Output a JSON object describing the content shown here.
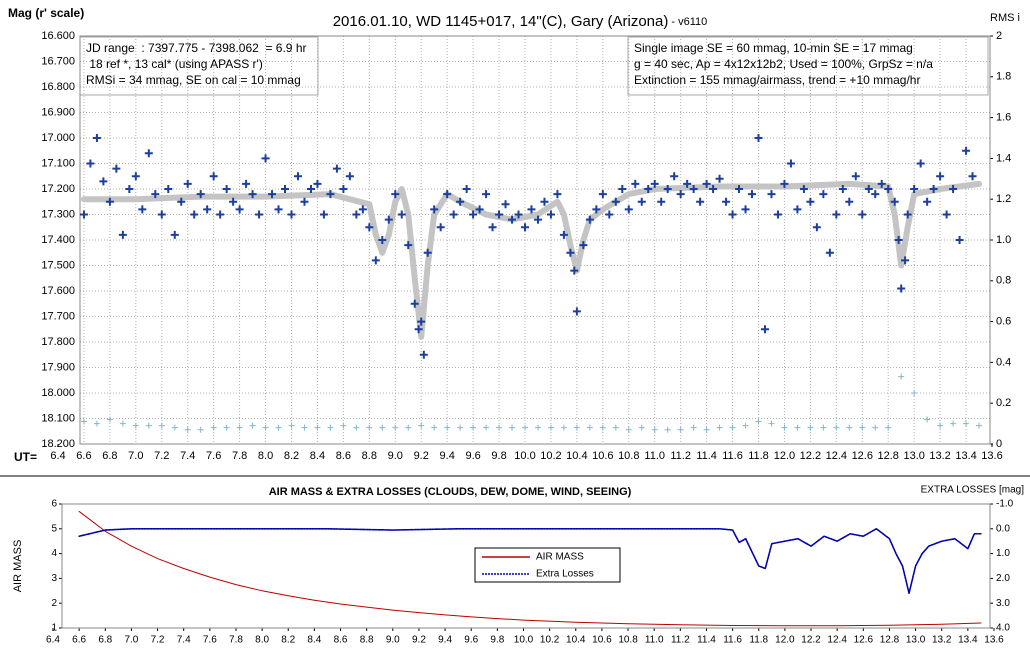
{
  "chart_data": [
    {
      "type": "scatter",
      "title": "2016.01.10, WD 1145+017, 14\"(C), Gary (Arizona)",
      "subtitle": " - v6110",
      "ylabel": "Mag (r' scale)",
      "y2label": "RMS i",
      "xlabel": "UT=",
      "notes_left": [
        "JD range  : 7397.775 - 7398.062  = 6.9 hr",
        " 18 ref *, 13 cal* (using APASS r')",
        "RMSi = 34 mmag, SE on cal = 10 mmag"
      ],
      "notes_right": [
        "Single image SE = 60 mmag, 10-min SE = 17 mmag",
        "g = 40 sec, Ap = 4x12x12b2, Used = 100%, GrpSz = n/a",
        "Extinction = 155 mmag/airmass, trend = +10 mmag/hr"
      ],
      "grid": true,
      "xlim": [
        6.4,
        13.6
      ],
      "xticks": [
        6.4,
        6.6,
        6.8,
        {
          "value": 7,
          "label": "7.0"
        },
        7.2,
        7.4,
        7.6,
        7.8,
        {
          "value": 8,
          "label": "8.0"
        },
        8.2,
        8.4,
        8.6,
        8.8,
        {
          "value": 9,
          "label": "9.0"
        },
        9.2,
        9.4,
        9.6,
        9.8,
        {
          "value": 10,
          "label": "10.0"
        },
        10.2,
        10.4,
        10.6,
        10.8,
        {
          "value": 11,
          "label": "11.0"
        },
        11.2,
        11.4,
        11.6,
        11.8,
        {
          "value": 12,
          "label": "12.0"
        },
        12.2,
        12.4,
        12.6,
        12.8,
        {
          "value": 13,
          "label": "13.0"
        },
        13.2,
        13.4,
        13.6
      ],
      "ylim": [
        18.2,
        16.6
      ],
      "yticks": [
        {
          "value": 16.6,
          "label": "16.600"
        },
        {
          "value": 16.7,
          "label": "16.700"
        },
        {
          "value": 16.8,
          "label": "16.800"
        },
        {
          "value": 16.9,
          "label": "16.900"
        },
        {
          "value": 17.0,
          "label": "17.000"
        },
        {
          "value": 17.1,
          "label": "17.100"
        },
        {
          "value": 17.2,
          "label": "17.200"
        },
        {
          "value": 17.3,
          "label": "17.300"
        },
        {
          "value": 17.4,
          "label": "17.400"
        },
        {
          "value": 17.5,
          "label": "17.500"
        },
        {
          "value": 17.6,
          "label": "17.600"
        },
        {
          "value": 17.7,
          "label": "17.700"
        },
        {
          "value": 17.8,
          "label": "17.800"
        },
        {
          "value": 17.9,
          "label": "17.900"
        },
        {
          "value": 18.0,
          "label": "18.000"
        },
        {
          "value": 18.1,
          "label": "18.100"
        },
        {
          "value": 18.2,
          "label": "18.200"
        }
      ],
      "y2lim": [
        0,
        2
      ],
      "y2ticks": [
        0,
        0.2,
        0.4,
        0.6,
        0.8,
        {
          "value": 1,
          "label": "1.0"
        },
        1.2,
        1.4,
        1.6,
        1.8,
        2
      ],
      "series": [
        {
          "type": "line",
          "color": "#c4c4c4",
          "x": [
            6.6,
            7.0,
            7.5,
            8.0,
            8.5,
            8.8,
            8.85,
            8.9,
            8.95,
            9.0,
            9.05,
            9.1,
            9.15,
            9.2,
            9.25,
            9.3,
            9.4,
            9.5,
            9.7,
            9.9,
            10.1,
            10.25,
            10.3,
            10.35,
            10.4,
            10.45,
            10.5,
            10.6,
            10.8,
            11.0,
            11.5,
            12.0,
            12.5,
            12.8,
            12.85,
            12.9,
            12.95,
            13.0,
            13.2,
            13.5
          ],
          "values": [
            17.24,
            17.24,
            17.23,
            17.23,
            17.22,
            17.26,
            17.38,
            17.45,
            17.38,
            17.25,
            17.2,
            17.3,
            17.55,
            17.78,
            17.5,
            17.3,
            17.22,
            17.25,
            17.3,
            17.32,
            17.3,
            17.25,
            17.3,
            17.42,
            17.52,
            17.4,
            17.32,
            17.28,
            17.22,
            17.2,
            17.19,
            17.19,
            17.18,
            17.19,
            17.3,
            17.5,
            17.35,
            17.22,
            17.2,
            17.18
          ]
        },
        {
          "type": "scatter",
          "color": "#1c3f9e",
          "x": [
            6.6,
            6.65,
            6.7,
            6.75,
            6.8,
            6.85,
            6.9,
            6.95,
            7.0,
            7.05,
            7.1,
            7.15,
            7.2,
            7.25,
            7.3,
            7.35,
            7.4,
            7.45,
            7.5,
            7.55,
            7.6,
            7.65,
            7.7,
            7.75,
            7.8,
            7.85,
            7.9,
            7.95,
            8.0,
            8.05,
            8.1,
            8.15,
            8.2,
            8.25,
            8.3,
            8.35,
            8.4,
            8.45,
            8.5,
            8.55,
            8.6,
            8.65,
            8.7,
            8.75,
            8.8,
            8.85,
            8.9,
            8.95,
            9.0,
            9.05,
            9.1,
            9.15,
            9.18,
            9.2,
            9.22,
            9.25,
            9.3,
            9.35,
            9.4,
            9.45,
            9.5,
            9.55,
            9.6,
            9.65,
            9.7,
            9.75,
            9.8,
            9.85,
            9.9,
            9.95,
            10.0,
            10.05,
            10.1,
            10.15,
            10.2,
            10.25,
            10.3,
            10.35,
            10.38,
            10.4,
            10.45,
            10.5,
            10.55,
            10.6,
            10.65,
            10.7,
            10.75,
            10.8,
            10.85,
            10.9,
            10.95,
            11.0,
            11.05,
            11.1,
            11.15,
            11.2,
            11.25,
            11.3,
            11.35,
            11.4,
            11.45,
            11.5,
            11.55,
            11.6,
            11.65,
            11.7,
            11.75,
            11.8,
            11.85,
            11.9,
            11.95,
            12.0,
            12.05,
            12.1,
            12.15,
            12.2,
            12.25,
            12.3,
            12.35,
            12.4,
            12.45,
            12.5,
            12.55,
            12.6,
            12.65,
            12.7,
            12.75,
            12.8,
            12.85,
            12.88,
            12.9,
            12.93,
            12.95,
            13.0,
            13.05,
            13.1,
            13.15,
            13.2,
            13.25,
            13.3,
            13.35,
            13.4,
            13.45
          ],
          "values": [
            17.3,
            17.1,
            17.0,
            17.17,
            17.25,
            17.12,
            17.38,
            17.2,
            17.15,
            17.28,
            17.06,
            17.22,
            17.3,
            17.2,
            17.38,
            17.25,
            17.18,
            17.3,
            17.22,
            17.28,
            17.15,
            17.3,
            17.2,
            17.25,
            17.28,
            17.18,
            17.22,
            17.3,
            17.08,
            17.22,
            17.28,
            17.2,
            17.3,
            17.15,
            17.25,
            17.2,
            17.18,
            17.3,
            17.22,
            17.12,
            17.2,
            17.15,
            17.3,
            17.28,
            17.35,
            17.48,
            17.4,
            17.32,
            17.22,
            17.3,
            17.42,
            17.65,
            17.75,
            17.72,
            17.85,
            17.45,
            17.28,
            17.35,
            17.22,
            17.3,
            17.25,
            17.2,
            17.3,
            17.28,
            17.22,
            17.35,
            17.3,
            17.26,
            17.32,
            17.3,
            17.35,
            17.28,
            17.32,
            17.25,
            17.3,
            17.22,
            17.38,
            17.45,
            17.52,
            17.68,
            17.42,
            17.32,
            17.28,
            17.22,
            17.3,
            17.25,
            17.2,
            17.28,
            17.18,
            17.25,
            17.2,
            17.18,
            17.25,
            17.2,
            17.15,
            17.22,
            17.18,
            17.2,
            17.25,
            17.18,
            17.2,
            17.16,
            17.25,
            17.3,
            17.2,
            17.28,
            17.22,
            17.0,
            17.75,
            17.22,
            17.3,
            17.18,
            17.1,
            17.28,
            17.2,
            17.25,
            17.35,
            17.22,
            17.45,
            17.3,
            17.2,
            17.25,
            17.15,
            17.3,
            17.2,
            17.22,
            17.18,
            17.2,
            17.25,
            17.4,
            17.59,
            17.48,
            17.3,
            17.2,
            17.1,
            17.25,
            17.2,
            17.15,
            17.3,
            17.2,
            17.4,
            17.05,
            17.15
          ]
        },
        {
          "type": "scatter",
          "color": "#86b6c8",
          "axis": "y2",
          "x": [
            6.6,
            6.7,
            6.8,
            6.9,
            7.0,
            7.1,
            7.2,
            7.3,
            7.4,
            7.5,
            7.6,
            7.7,
            7.8,
            7.9,
            8.0,
            8.1,
            8.2,
            8.3,
            8.4,
            8.5,
            8.6,
            8.7,
            8.8,
            8.9,
            9.0,
            9.1,
            9.2,
            9.3,
            9.4,
            9.5,
            9.6,
            9.7,
            9.8,
            9.9,
            10.0,
            10.1,
            10.2,
            10.3,
            10.4,
            10.5,
            10.6,
            10.7,
            10.8,
            10.9,
            11.0,
            11.1,
            11.2,
            11.3,
            11.4,
            11.5,
            11.6,
            11.7,
            11.8,
            11.9,
            12.0,
            12.1,
            12.2,
            12.3,
            12.4,
            12.5,
            12.6,
            12.7,
            12.8,
            12.9,
            13.0,
            13.1,
            13.2,
            13.3,
            13.4,
            13.5
          ],
          "values": [
            0.11,
            0.1,
            0.12,
            0.1,
            0.09,
            0.09,
            0.09,
            0.08,
            0.07,
            0.07,
            0.08,
            0.08,
            0.08,
            0.09,
            0.08,
            0.08,
            0.09,
            0.08,
            0.08,
            0.08,
            0.09,
            0.08,
            0.08,
            0.08,
            0.08,
            0.08,
            0.09,
            0.08,
            0.08,
            0.08,
            0.08,
            0.08,
            0.08,
            0.08,
            0.08,
            0.08,
            0.08,
            0.08,
            0.08,
            0.08,
            0.08,
            0.08,
            0.07,
            0.08,
            0.07,
            0.07,
            0.07,
            0.08,
            0.07,
            0.08,
            0.08,
            0.09,
            0.11,
            0.1,
            0.08,
            0.08,
            0.08,
            0.08,
            0.08,
            0.08,
            0.08,
            0.08,
            0.08,
            0.33,
            0.25,
            0.12,
            0.09,
            0.1,
            0.1,
            0.09
          ]
        }
      ]
    },
    {
      "type": "line",
      "title": "AIR MASS & EXTRA LOSSES (CLOUDS, DEW, DOME, WIND, SEEING)",
      "ylabel": "AIR MASS",
      "y2label": "EXTRA LOSSES [mag]",
      "grid": false,
      "xlim": [
        6.4,
        13.6
      ],
      "xticks": [
        6.4,
        6.6,
        6.8,
        {
          "value": 7,
          "label": "7.0"
        },
        7.2,
        7.4,
        7.6,
        7.8,
        {
          "value": 8,
          "label": "8.0"
        },
        8.2,
        8.4,
        8.6,
        8.8,
        {
          "value": 9,
          "label": "9.0"
        },
        9.2,
        9.4,
        9.6,
        9.8,
        {
          "value": 10,
          "label": "10.0"
        },
        10.2,
        10.4,
        10.6,
        10.8,
        {
          "value": 11,
          "label": "11.0"
        },
        11.2,
        11.4,
        11.6,
        11.8,
        {
          "value": 12,
          "label": "12.0"
        },
        12.2,
        12.4,
        12.6,
        12.8,
        {
          "value": 13,
          "label": "13.0"
        },
        13.2,
        13.4,
        13.6
      ],
      "ylim": [
        1,
        6
      ],
      "yticks": [
        1,
        2,
        3,
        4,
        5,
        6
      ],
      "y2lim": [
        4,
        -1
      ],
      "y2ticks": [
        {
          "value": -1,
          "label": "-1.0"
        },
        {
          "value": 0,
          "label": "0.0"
        },
        {
          "value": 1,
          "label": "1.0"
        },
        {
          "value": 2,
          "label": "2.0"
        },
        {
          "value": 3,
          "label": "3.0"
        },
        {
          "value": 4,
          "label": "4.0"
        }
      ],
      "series": [
        {
          "type": "line",
          "name": "AIR MASS",
          "color": "#c00000",
          "x": [
            6.6,
            6.8,
            7.0,
            7.2,
            7.4,
            7.6,
            7.8,
            8.0,
            8.2,
            8.4,
            8.6,
            8.8,
            9.0,
            9.2,
            9.4,
            9.6,
            9.8,
            10.0,
            10.4,
            10.8,
            11.2,
            11.6,
            12.0,
            12.4,
            12.8,
            13.2,
            13.5
          ],
          "values": [
            5.7,
            4.9,
            4.3,
            3.8,
            3.4,
            3.05,
            2.75,
            2.5,
            2.3,
            2.12,
            1.97,
            1.84,
            1.72,
            1.62,
            1.53,
            1.45,
            1.38,
            1.32,
            1.23,
            1.17,
            1.13,
            1.1,
            1.09,
            1.09,
            1.11,
            1.15,
            1.2
          ]
        },
        {
          "type": "line",
          "name": "Extra Losses",
          "color": "#0000b0",
          "axis": "y2",
          "x": [
            6.6,
            6.8,
            7.0,
            7.5,
            8.0,
            8.5,
            9.0,
            9.5,
            10.0,
            10.5,
            11.0,
            11.5,
            11.6,
            11.65,
            11.7,
            11.8,
            11.85,
            11.9,
            12.0,
            12.1,
            12.2,
            12.3,
            12.4,
            12.5,
            12.6,
            12.7,
            12.8,
            12.85,
            12.9,
            12.95,
            13.0,
            13.05,
            13.1,
            13.2,
            13.3,
            13.4,
            13.45,
            13.5
          ],
          "values": [
            0.3,
            0.05,
            0.0,
            0.0,
            0.0,
            0.0,
            0.05,
            0.0,
            0.0,
            0.0,
            0.0,
            0.0,
            0.05,
            0.55,
            0.4,
            1.5,
            1.6,
            0.6,
            0.5,
            0.4,
            0.7,
            0.3,
            0.5,
            0.2,
            0.3,
            0.0,
            0.4,
            1.0,
            1.5,
            2.6,
            1.5,
            1.0,
            0.7,
            0.5,
            0.4,
            0.8,
            0.2,
            0.2
          ]
        }
      ]
    }
  ]
}
